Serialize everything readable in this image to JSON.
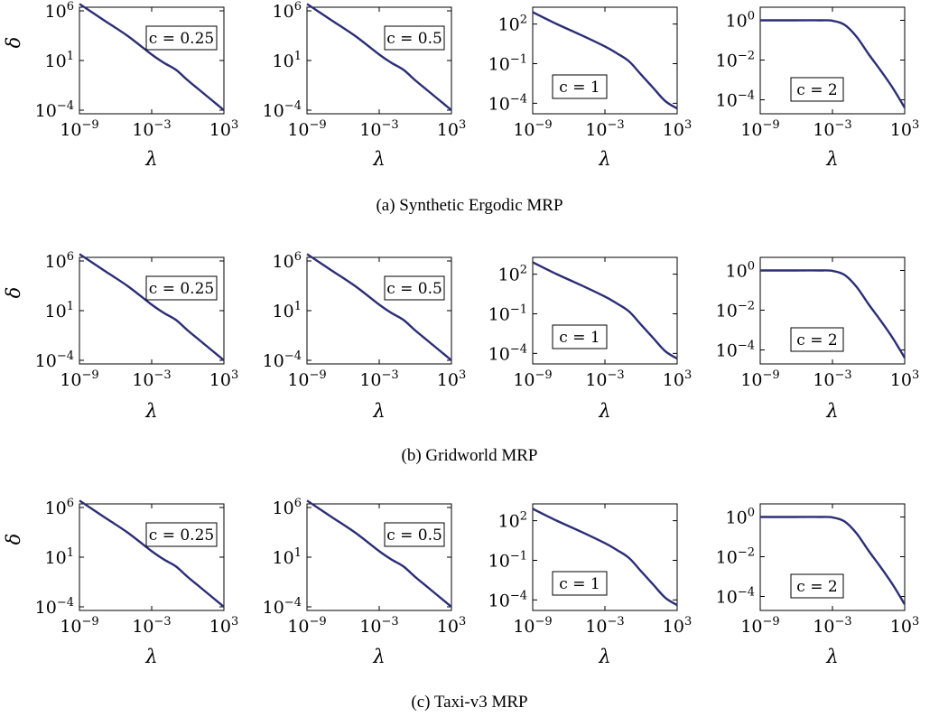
{
  "figure": {
    "rows": [
      {
        "caption": "(a) Synthetic Ergodic MRP"
      },
      {
        "caption": "(b) Gridworld MRP"
      },
      {
        "caption": "(c) Taxi-v3 MRP"
      }
    ]
  },
  "chart_data": [
    {
      "type": "line",
      "row": 0,
      "col": 0,
      "annotation": "c = 0.25",
      "xlabel": "λ",
      "ylabel": "δ",
      "x_scale": "log",
      "y_scale": "log",
      "xlim": [
        1e-09,
        1000.0
      ],
      "ylim": [
        0.0001,
        1000000.0
      ],
      "x_ticks": [
        {
          "base": "10",
          "exp": "−9"
        },
        {
          "base": "10",
          "exp": "−3"
        },
        {
          "base": "10",
          "exp": "3"
        }
      ],
      "y_ticks": [
        {
          "base": "10",
          "exp": "6"
        },
        {
          "base": "10",
          "exp": "1"
        },
        {
          "base": "10",
          "exp": "−4"
        }
      ],
      "series": [
        {
          "color": "#2b2e75",
          "x": [
            1e-09,
            1e-07,
            1e-05,
            0.001,
            0.01,
            0.1,
            1.0,
            10.0,
            100.0,
            1000.0
          ],
          "y": [
            5000000.0,
            120000.0,
            3000.0,
            40,
            6,
            1.2,
            0.1,
            0.01,
            0.001,
            0.0001
          ]
        }
      ]
    },
    {
      "type": "line",
      "row": 0,
      "col": 1,
      "annotation": "c = 0.5",
      "xlabel": "λ",
      "ylabel": "",
      "x_scale": "log",
      "y_scale": "log",
      "xlim": [
        1e-09,
        1000.0
      ],
      "ylim": [
        0.0001,
        1000000.0
      ],
      "x_ticks": [
        {
          "base": "10",
          "exp": "−9"
        },
        {
          "base": "10",
          "exp": "−3"
        },
        {
          "base": "10",
          "exp": "3"
        }
      ],
      "y_ticks": [
        {
          "base": "10",
          "exp": "6"
        },
        {
          "base": "10",
          "exp": "1"
        },
        {
          "base": "10",
          "exp": "−4"
        }
      ],
      "series": [
        {
          "color": "#2b2e75",
          "x": [
            1e-09,
            1e-07,
            1e-05,
            0.001,
            0.01,
            0.1,
            1.0,
            10.0,
            100.0,
            1000.0
          ],
          "y": [
            5000000.0,
            120000.0,
            3000.0,
            40,
            6,
            1.2,
            0.1,
            0.01,
            0.001,
            0.0001
          ]
        }
      ]
    },
    {
      "type": "line",
      "row": 0,
      "col": 2,
      "annotation": "c = 1",
      "xlabel": "λ",
      "ylabel": "",
      "x_scale": "log",
      "y_scale": "log",
      "xlim": [
        1e-09,
        1000.0
      ],
      "ylim": [
        3e-05,
        1000.0
      ],
      "x_ticks": [
        {
          "base": "10",
          "exp": "−9"
        },
        {
          "base": "10",
          "exp": "−3"
        },
        {
          "base": "10",
          "exp": "3"
        }
      ],
      "y_ticks": [
        {
          "base": "10",
          "exp": "2"
        },
        {
          "base": "10",
          "exp": "−1"
        },
        {
          "base": "10",
          "exp": "−4"
        }
      ],
      "series": [
        {
          "color": "#2b2e75",
          "x": [
            1e-09,
            1e-07,
            1e-05,
            0.001,
            0.01,
            0.1,
            1.0,
            10.0,
            100.0,
            1000.0
          ],
          "y": [
            800,
            100,
            15,
            2,
            0.6,
            0.15,
            0.015,
            0.0015,
            0.00015,
            4e-05
          ]
        }
      ]
    },
    {
      "type": "line",
      "row": 0,
      "col": 3,
      "annotation": "c = 2",
      "xlabel": "λ",
      "ylabel": "",
      "x_scale": "log",
      "y_scale": "log",
      "xlim": [
        1e-09,
        1000.0
      ],
      "ylim": [
        3e-05,
        3
      ],
      "x_ticks": [
        {
          "base": "10",
          "exp": "−9"
        },
        {
          "base": "10",
          "exp": "−3"
        },
        {
          "base": "10",
          "exp": "3"
        }
      ],
      "y_ticks": [
        {
          "base": "10",
          "exp": "0"
        },
        {
          "base": "10",
          "exp": "−2"
        },
        {
          "base": "10",
          "exp": "−4"
        }
      ],
      "series": [
        {
          "color": "#2b2e75",
          "x": [
            1e-09,
            1e-06,
            0.0001,
            0.001,
            0.01,
            0.1,
            1.0,
            10.0,
            100.0,
            1000.0
          ],
          "y": [
            1,
            1,
            1,
            0.95,
            0.6,
            0.15,
            0.02,
            0.003,
            0.0004,
            4e-05
          ]
        }
      ]
    },
    {
      "type": "line",
      "row": 1,
      "col": 0,
      "annotation": "c = 0.25",
      "xlabel": "λ",
      "ylabel": "δ",
      "x_scale": "log",
      "y_scale": "log",
      "xlim": [
        1e-09,
        1000.0
      ],
      "ylim": [
        0.0001,
        1000000.0
      ],
      "x_ticks": [
        {
          "base": "10",
          "exp": "−9"
        },
        {
          "base": "10",
          "exp": "−3"
        },
        {
          "base": "10",
          "exp": "3"
        }
      ],
      "y_ticks": [
        {
          "base": "10",
          "exp": "6"
        },
        {
          "base": "10",
          "exp": "1"
        },
        {
          "base": "10",
          "exp": "−4"
        }
      ],
      "series": [
        {
          "color": "#2b2e75",
          "x": [
            1e-09,
            1e-07,
            1e-05,
            0.001,
            0.01,
            0.1,
            1.0,
            10.0,
            100.0,
            1000.0
          ],
          "y": [
            5000000.0,
            120000.0,
            3000.0,
            40,
            6,
            1.2,
            0.1,
            0.01,
            0.001,
            0.0001
          ]
        }
      ]
    },
    {
      "type": "line",
      "row": 1,
      "col": 1,
      "annotation": "c = 0.5",
      "xlabel": "λ",
      "ylabel": "",
      "x_scale": "log",
      "y_scale": "log",
      "xlim": [
        1e-09,
        1000.0
      ],
      "ylim": [
        0.0001,
        1000000.0
      ],
      "x_ticks": [
        {
          "base": "10",
          "exp": "−9"
        },
        {
          "base": "10",
          "exp": "−3"
        },
        {
          "base": "10",
          "exp": "3"
        }
      ],
      "y_ticks": [
        {
          "base": "10",
          "exp": "6"
        },
        {
          "base": "10",
          "exp": "1"
        },
        {
          "base": "10",
          "exp": "−4"
        }
      ],
      "series": [
        {
          "color": "#2b2e75",
          "x": [
            1e-09,
            1e-07,
            1e-05,
            0.001,
            0.01,
            0.1,
            1.0,
            10.0,
            100.0,
            1000.0
          ],
          "y": [
            5000000.0,
            120000.0,
            3000.0,
            40,
            6,
            1.2,
            0.1,
            0.01,
            0.001,
            0.0001
          ]
        }
      ]
    },
    {
      "type": "line",
      "row": 1,
      "col": 2,
      "annotation": "c = 1",
      "xlabel": "λ",
      "ylabel": "",
      "x_scale": "log",
      "y_scale": "log",
      "xlim": [
        1e-09,
        1000.0
      ],
      "ylim": [
        3e-05,
        1000.0
      ],
      "x_ticks": [
        {
          "base": "10",
          "exp": "−9"
        },
        {
          "base": "10",
          "exp": "−3"
        },
        {
          "base": "10",
          "exp": "3"
        }
      ],
      "y_ticks": [
        {
          "base": "10",
          "exp": "2"
        },
        {
          "base": "10",
          "exp": "−1"
        },
        {
          "base": "10",
          "exp": "−4"
        }
      ],
      "series": [
        {
          "color": "#2b2e75",
          "x": [
            1e-09,
            1e-07,
            1e-05,
            0.001,
            0.01,
            0.1,
            1.0,
            10.0,
            100.0,
            1000.0
          ],
          "y": [
            800,
            100,
            15,
            2,
            0.6,
            0.15,
            0.015,
            0.0015,
            0.00015,
            4e-05
          ]
        }
      ]
    },
    {
      "type": "line",
      "row": 1,
      "col": 3,
      "annotation": "c = 2",
      "xlabel": "λ",
      "ylabel": "",
      "x_scale": "log",
      "y_scale": "log",
      "xlim": [
        1e-09,
        1000.0
      ],
      "ylim": [
        3e-05,
        3
      ],
      "x_ticks": [
        {
          "base": "10",
          "exp": "−9"
        },
        {
          "base": "10",
          "exp": "−3"
        },
        {
          "base": "10",
          "exp": "3"
        }
      ],
      "y_ticks": [
        {
          "base": "10",
          "exp": "0"
        },
        {
          "base": "10",
          "exp": "−2"
        },
        {
          "base": "10",
          "exp": "−4"
        }
      ],
      "series": [
        {
          "color": "#2b2e75",
          "x": [
            1e-09,
            1e-06,
            0.0001,
            0.001,
            0.01,
            0.1,
            1.0,
            10.0,
            100.0,
            1000.0
          ],
          "y": [
            1,
            1,
            1,
            0.95,
            0.6,
            0.15,
            0.02,
            0.003,
            0.0004,
            4e-05
          ]
        }
      ]
    },
    {
      "type": "line",
      "row": 2,
      "col": 0,
      "annotation": "c = 0.25",
      "xlabel": "λ",
      "ylabel": "δ",
      "x_scale": "log",
      "y_scale": "log",
      "xlim": [
        1e-09,
        1000.0
      ],
      "ylim": [
        0.0001,
        1000000.0
      ],
      "x_ticks": [
        {
          "base": "10",
          "exp": "−9"
        },
        {
          "base": "10",
          "exp": "−3"
        },
        {
          "base": "10",
          "exp": "3"
        }
      ],
      "y_ticks": [
        {
          "base": "10",
          "exp": "6"
        },
        {
          "base": "10",
          "exp": "1"
        },
        {
          "base": "10",
          "exp": "−4"
        }
      ],
      "series": [
        {
          "color": "#2b2e75",
          "x": [
            1e-09,
            1e-07,
            1e-05,
            0.001,
            0.01,
            0.1,
            1.0,
            10.0,
            100.0,
            1000.0
          ],
          "y": [
            5000000.0,
            120000.0,
            3000.0,
            40,
            6,
            1.2,
            0.1,
            0.01,
            0.001,
            0.0001
          ]
        }
      ]
    },
    {
      "type": "line",
      "row": 2,
      "col": 1,
      "annotation": "c = 0.5",
      "xlabel": "λ",
      "ylabel": "",
      "x_scale": "log",
      "y_scale": "log",
      "xlim": [
        1e-09,
        1000.0
      ],
      "ylim": [
        0.0001,
        1000000.0
      ],
      "x_ticks": [
        {
          "base": "10",
          "exp": "−9"
        },
        {
          "base": "10",
          "exp": "−3"
        },
        {
          "base": "10",
          "exp": "3"
        }
      ],
      "y_ticks": [
        {
          "base": "10",
          "exp": "6"
        },
        {
          "base": "10",
          "exp": "1"
        },
        {
          "base": "10",
          "exp": "−4"
        }
      ],
      "series": [
        {
          "color": "#2b2e75",
          "x": [
            1e-09,
            1e-07,
            1e-05,
            0.001,
            0.01,
            0.1,
            1.0,
            10.0,
            100.0,
            1000.0
          ],
          "y": [
            5000000.0,
            120000.0,
            3000.0,
            40,
            6,
            1.2,
            0.1,
            0.01,
            0.001,
            0.0001
          ]
        }
      ]
    },
    {
      "type": "line",
      "row": 2,
      "col": 2,
      "annotation": "c = 1",
      "xlabel": "λ",
      "ylabel": "",
      "x_scale": "log",
      "y_scale": "log",
      "xlim": [
        1e-09,
        1000.0
      ],
      "ylim": [
        3e-05,
        1000.0
      ],
      "x_ticks": [
        {
          "base": "10",
          "exp": "−9"
        },
        {
          "base": "10",
          "exp": "−3"
        },
        {
          "base": "10",
          "exp": "3"
        }
      ],
      "y_ticks": [
        {
          "base": "10",
          "exp": "2"
        },
        {
          "base": "10",
          "exp": "−1"
        },
        {
          "base": "10",
          "exp": "−4"
        }
      ],
      "series": [
        {
          "color": "#2b2e75",
          "x": [
            1e-09,
            1e-07,
            1e-05,
            0.001,
            0.01,
            0.1,
            1.0,
            10.0,
            100.0,
            1000.0
          ],
          "y": [
            800,
            100,
            15,
            2,
            0.6,
            0.15,
            0.015,
            0.0015,
            0.00015,
            4e-05
          ]
        }
      ]
    },
    {
      "type": "line",
      "row": 2,
      "col": 3,
      "annotation": "c = 2",
      "xlabel": "λ",
      "ylabel": "",
      "x_scale": "log",
      "y_scale": "log",
      "xlim": [
        1e-09,
        1000.0
      ],
      "ylim": [
        3e-05,
        3
      ],
      "x_ticks": [
        {
          "base": "10",
          "exp": "−9"
        },
        {
          "base": "10",
          "exp": "−3"
        },
        {
          "base": "10",
          "exp": "3"
        }
      ],
      "y_ticks": [
        {
          "base": "10",
          "exp": "0"
        },
        {
          "base": "10",
          "exp": "−2"
        },
        {
          "base": "10",
          "exp": "−4"
        }
      ],
      "series": [
        {
          "color": "#2b2e75",
          "x": [
            1e-09,
            1e-06,
            0.0001,
            0.001,
            0.01,
            0.1,
            1.0,
            10.0,
            100.0,
            1000.0
          ],
          "y": [
            1,
            1,
            1,
            0.95,
            0.6,
            0.15,
            0.02,
            0.003,
            0.0004,
            4e-05
          ]
        }
      ]
    }
  ]
}
